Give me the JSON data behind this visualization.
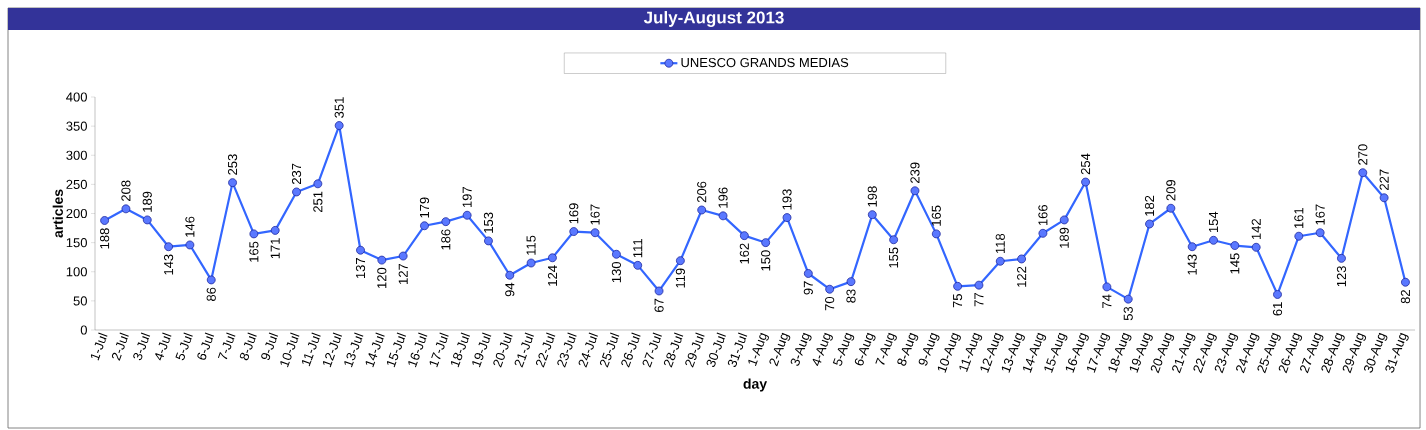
{
  "chart_data": {
    "type": "line",
    "title": "July-August 2013",
    "xlabel": "day",
    "ylabel": "articles",
    "categories": [
      "1-Jul",
      "2-Jul",
      "3-Jul",
      "4-Jul",
      "5-Jul",
      "6-Jul",
      "7-Jul",
      "8-Jul",
      "9-Jul",
      "10-Jul",
      "11-Jul",
      "12-Jul",
      "13-Jul",
      "14-Jul",
      "15-Jul",
      "16-Jul",
      "17-Jul",
      "18-Jul",
      "19-Jul",
      "20-Jul",
      "21-Jul",
      "22-Jul",
      "23-Jul",
      "24-Jul",
      "25-Jul",
      "26-Jul",
      "27-Jul",
      "28-Jul",
      "29-Jul",
      "30-Jul",
      "31-Jul",
      "1-Aug",
      "2-Aug",
      "3-Aug",
      "4-Aug",
      "5-Aug",
      "6-Aug",
      "7-Aug",
      "8-Aug",
      "9-Aug",
      "10-Aug",
      "11-Aug",
      "12-Aug",
      "13-Aug",
      "14-Aug",
      "15-Aug",
      "16-Aug",
      "17-Aug",
      "18-Aug",
      "19-Aug",
      "20-Aug",
      "21-Aug",
      "22-Aug",
      "23-Aug",
      "24-Aug",
      "25-Aug",
      "26-Aug",
      "27-Aug",
      "28-Aug",
      "29-Aug",
      "30-Aug",
      "31-Aug"
    ],
    "series": [
      {
        "name": "UNESCO GRANDS MEDIAS",
        "color": "#3366ff",
        "values": [
          188,
          208,
          189,
          143,
          146,
          86,
          253,
          165,
          171,
          237,
          251,
          351,
          137,
          120,
          127,
          179,
          186,
          197,
          153,
          94,
          115,
          124,
          169,
          167,
          130,
          111,
          67,
          119,
          206,
          196,
          162,
          150,
          193,
          97,
          70,
          83,
          198,
          155,
          239,
          165,
          75,
          77,
          118,
          122,
          166,
          189,
          254,
          74,
          53,
          182,
          209,
          143,
          154,
          145,
          142,
          61,
          161,
          167,
          123,
          270,
          227,
          82
        ]
      }
    ],
    "ylim": [
      0,
      400
    ],
    "yticks": [
      0,
      50,
      100,
      150,
      200,
      250,
      300,
      350,
      400
    ],
    "data_labels": true,
    "legend": "top",
    "marker": "circle",
    "line_style": "solid",
    "grid": false
  }
}
